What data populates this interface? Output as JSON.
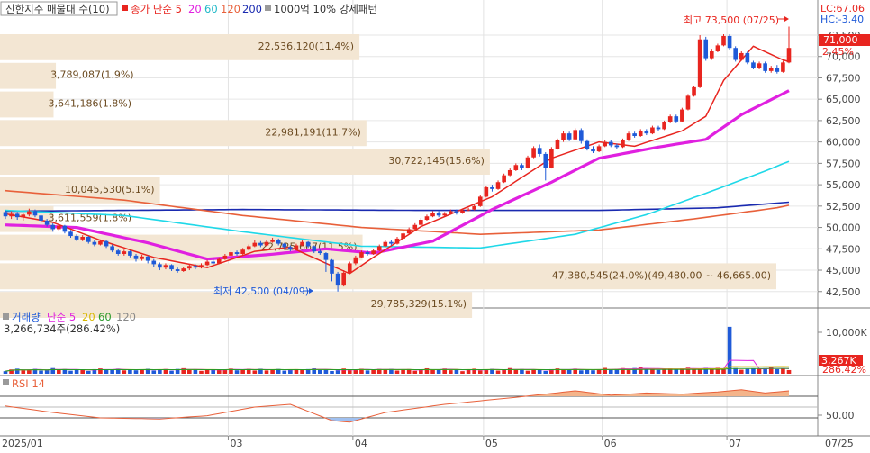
{
  "top_legend": {
    "volume_profile": "신한지주 매물대 수(10)",
    "close_ma": "종가 단순 5",
    "ma20": "20",
    "ma60": "60",
    "ma120": "120",
    "ma200": "200",
    "pattern": "1000억 10% 강세패턴"
  },
  "right_info": {
    "lc": "LC:67.06",
    "hc": "HC:-3.40",
    "price_badge": "71,000",
    "change_pct": "2.45%",
    "volume_badge": "3,267K",
    "volume_pct": "286.42%"
  },
  "annotations": {
    "high": "최고 73,500 (07/25)",
    "low": "최저 42,500 (04/09)"
  },
  "volume_panel": {
    "legend_title": "거래량",
    "legend_ma": "단순 5",
    "legend_20": "20",
    "legend_60": "60",
    "legend_120": "120",
    "current": "3,266,734주(286.42%)",
    "axis_label": "10,000K"
  },
  "rsi_panel": {
    "legend": "RSI 14",
    "axis_label": "50.00"
  },
  "xaxis": {
    "start": "2025/01",
    "months": [
      "03",
      "04",
      "05",
      "06",
      "07"
    ],
    "end": "07/25"
  },
  "colors": {
    "up": "#e8251f",
    "down": "#1f5ad8",
    "ma5": "#e8251f",
    "ma20": "#e020e0",
    "ma60": "#1fd8e8",
    "ma120": "#e8603a",
    "ma200": "#1a2ab0",
    "profile": "#f3e6d3"
  },
  "chart_data": [
    {
      "type": "candlestick",
      "title": "신한지주",
      "ylim": [
        41000,
        74500
      ],
      "yticks": [
        "72,500",
        "70,000",
        "67,500",
        "65,000",
        "62,500",
        "60,000",
        "57,500",
        "55,000",
        "52,500",
        "50,000",
        "47,500",
        "45,000",
        "42,500"
      ],
      "volume_profile": [
        {
          "label": "22,536,120(11.4%)",
          "length": 0.463
        },
        {
          "label": "3,789,087(1.9%)",
          "length": 0.072
        },
        {
          "label": "3,641,186(1.8%)",
          "length": 0.069
        },
        {
          "label": "22,981,191(11.7%)",
          "length": 0.472
        },
        {
          "label": "30,722,145(15.6%)",
          "length": 0.631
        },
        {
          "label": "10,045,530(5.1%)",
          "length": 0.206
        },
        {
          "label": "3,611,559(1.8%)",
          "length": 0.069
        },
        {
          "label": "22,725,667(11.5%)",
          "length": 0.467
        },
        {
          "label": "47,380,545(24.0%)(49,480.00 ~ 46,665.00)",
          "length": 1.0
        },
        {
          "label": "29,785,329(15.1%)",
          "length": 0.608
        }
      ],
      "candles": [
        [
          51800,
          51300,
          52000,
          51000
        ],
        [
          51300,
          51600,
          51900,
          51000
        ],
        [
          51600,
          51200,
          51800,
          50900
        ],
        [
          51200,
          51500,
          51700,
          50800
        ],
        [
          51500,
          51900,
          52200,
          51300
        ],
        [
          51900,
          51400,
          52100,
          51200
        ],
        [
          51400,
          50800,
          51500,
          50500
        ],
        [
          50800,
          50300,
          51000,
          50100
        ],
        [
          50300,
          49800,
          50500,
          49500
        ],
        [
          49800,
          50200,
          50400,
          49600
        ],
        [
          50200,
          49500,
          50300,
          49300
        ],
        [
          49500,
          49000,
          49700,
          48800
        ],
        [
          49000,
          48600,
          49200,
          48400
        ],
        [
          48600,
          48900,
          49100,
          48400
        ],
        [
          48900,
          48300,
          49000,
          48100
        ],
        [
          48300,
          48000,
          48500,
          47800
        ],
        [
          48000,
          48400,
          48600,
          47900
        ],
        [
          48400,
          47800,
          48500,
          47600
        ],
        [
          47800,
          47300,
          48000,
          47100
        ],
        [
          47300,
          46900,
          47500,
          46700
        ],
        [
          46900,
          47200,
          47400,
          46700
        ],
        [
          47200,
          46700,
          47300,
          46500
        ],
        [
          46700,
          46300,
          46900,
          46000
        ],
        [
          46300,
          46600,
          46800,
          46100
        ],
        [
          46600,
          46100,
          46700,
          45800
        ],
        [
          46100,
          45700,
          46300,
          45400
        ],
        [
          45700,
          45300,
          45900,
          45000
        ],
        [
          45300,
          45600,
          45800,
          45100
        ],
        [
          45600,
          45100,
          45700,
          44900
        ],
        [
          45100,
          44900,
          45300,
          44700
        ],
        [
          44900,
          45200,
          45400,
          44800
        ],
        [
          45200,
          45500,
          45700,
          45000
        ],
        [
          45500,
          45300,
          45700,
          45100
        ],
        [
          45300,
          45600,
          45800,
          45200
        ],
        [
          45600,
          46000,
          46200,
          45500
        ],
        [
          46000,
          45800,
          46300,
          45600
        ],
        [
          45800,
          46300,
          46500,
          45700
        ],
        [
          46300,
          46700,
          46900,
          46200
        ],
        [
          46700,
          47100,
          47300,
          46600
        ],
        [
          47100,
          46900,
          47300,
          46700
        ],
        [
          46900,
          47400,
          47600,
          46800
        ],
        [
          47400,
          47800,
          48000,
          47300
        ],
        [
          47800,
          48200,
          48500,
          47700
        ],
        [
          48200,
          47900,
          48400,
          47700
        ],
        [
          47900,
          48300,
          48500,
          47800
        ],
        [
          48300,
          48500,
          48800,
          48200
        ],
        [
          48500,
          48100,
          48700,
          47900
        ],
        [
          48100,
          47700,
          48200,
          47500
        ],
        [
          47700,
          47400,
          47900,
          47200
        ],
        [
          47400,
          47900,
          48100,
          47300
        ],
        [
          47900,
          48300,
          48500,
          47800
        ],
        [
          48300,
          47800,
          48400,
          47600
        ],
        [
          47800,
          47200,
          47900,
          47000
        ],
        [
          47200,
          47000,
          47400,
          46800
        ],
        [
          47000,
          46200,
          47100,
          44800
        ],
        [
          46200,
          44600,
          46300,
          43700
        ],
        [
          44600,
          43200,
          44800,
          42500
        ],
        [
          43200,
          44700,
          45000,
          43100
        ],
        [
          44700,
          45800,
          46000,
          44600
        ],
        [
          45800,
          46500,
          46700,
          45600
        ],
        [
          46500,
          47100,
          47300,
          46400
        ],
        [
          47100,
          46900,
          47300,
          46700
        ],
        [
          46900,
          47300,
          47500,
          46800
        ],
        [
          47300,
          47800,
          48000,
          47200
        ],
        [
          47800,
          48300,
          48500,
          47700
        ],
        [
          48300,
          48100,
          48500,
          47900
        ],
        [
          48100,
          48700,
          48900,
          48000
        ],
        [
          48700,
          49300,
          49500,
          48600
        ],
        [
          49300,
          49800,
          50000,
          49200
        ],
        [
          49800,
          50300,
          50500,
          49700
        ],
        [
          50300,
          50900,
          51100,
          50200
        ],
        [
          50900,
          51300,
          51500,
          50800
        ],
        [
          51300,
          51700,
          51900,
          51200
        ],
        [
          51700,
          51400,
          51900,
          51200
        ],
        [
          51400,
          51600,
          51800,
          51300
        ],
        [
          51600,
          51900,
          52100,
          51500
        ],
        [
          51900,
          51700,
          52100,
          51500
        ],
        [
          51700,
          52000,
          52200,
          51600
        ],
        [
          52000,
          52100,
          52300,
          51900
        ],
        [
          52100,
          52500,
          52700,
          52000
        ],
        [
          52500,
          53600,
          53800,
          52400
        ],
        [
          53600,
          54700,
          54900,
          53500
        ],
        [
          54700,
          54500,
          55000,
          54200
        ],
        [
          54500,
          55300,
          55500,
          54400
        ],
        [
          55300,
          56100,
          56300,
          55200
        ],
        [
          56100,
          56700,
          56900,
          56000
        ],
        [
          56700,
          57300,
          57500,
          56600
        ],
        [
          57300,
          57000,
          57500,
          56700
        ],
        [
          57000,
          58200,
          58400,
          56900
        ],
        [
          58200,
          59300,
          59500,
          58100
        ],
        [
          59300,
          58600,
          59700,
          58300
        ],
        [
          58600,
          57000,
          58800,
          55500
        ],
        [
          57000,
          59200,
          59400,
          56900
        ],
        [
          59200,
          60200,
          60400,
          59100
        ],
        [
          60200,
          61000,
          61300,
          60000
        ],
        [
          61000,
          60300,
          61200,
          60100
        ],
        [
          60300,
          61400,
          61600,
          60200
        ],
        [
          61400,
          60100,
          61600,
          59800
        ],
        [
          60100,
          59200,
          60300,
          59000
        ],
        [
          59200,
          58900,
          59500,
          58700
        ],
        [
          58900,
          59500,
          59700,
          58800
        ],
        [
          59500,
          60000,
          60200,
          59400
        ],
        [
          60000,
          59600,
          60200,
          59400
        ],
        [
          59600,
          59400,
          59800,
          59200
        ],
        [
          59400,
          60200,
          60400,
          59300
        ],
        [
          60200,
          61000,
          61200,
          60100
        ],
        [
          61000,
          60700,
          61200,
          60500
        ],
        [
          60700,
          61300,
          61500,
          60600
        ],
        [
          61300,
          61000,
          61500,
          60800
        ],
        [
          61000,
          61700,
          61900,
          60900
        ],
        [
          61700,
          61500,
          61900,
          61300
        ],
        [
          61500,
          62300,
          62500,
          61400
        ],
        [
          62300,
          63000,
          63200,
          62200
        ],
        [
          63000,
          62400,
          63200,
          62200
        ],
        [
          62400,
          63800,
          64000,
          62300
        ],
        [
          63800,
          65400,
          65600,
          63700
        ],
        [
          65400,
          66400,
          66600,
          65300
        ],
        [
          66400,
          72000,
          72500,
          66300
        ],
        [
          72000,
          69800,
          72300,
          69500
        ],
        [
          69800,
          70600,
          70900,
          69600
        ],
        [
          70600,
          71300,
          71500,
          70500
        ],
        [
          71300,
          72400,
          72600,
          71200
        ],
        [
          72400,
          71000,
          72600,
          70800
        ],
        [
          71000,
          69600,
          71200,
          69400
        ],
        [
          69600,
          70400,
          70600,
          69500
        ],
        [
          70400,
          69300,
          70600,
          69100
        ],
        [
          69300,
          68700,
          69500,
          68500
        ],
        [
          68700,
          69200,
          69400,
          68500
        ],
        [
          69200,
          68300,
          69400,
          68100
        ],
        [
          68300,
          68700,
          68900,
          68100
        ],
        [
          68700,
          68200,
          69000,
          68000
        ],
        [
          68200,
          69300,
          69500,
          68100
        ],
        [
          69300,
          71000,
          73500,
          69200
        ]
      ],
      "ma5_anchors": [
        [
          0,
          51600
        ],
        [
          8,
          50600
        ],
        [
          16,
          48500
        ],
        [
          25,
          46500
        ],
        [
          34,
          45300
        ],
        [
          42,
          47200
        ],
        [
          48,
          47700
        ],
        [
          55,
          45500
        ],
        [
          58,
          44600
        ],
        [
          62,
          46500
        ],
        [
          70,
          50100
        ],
        [
          82,
          53600
        ],
        [
          92,
          58100
        ],
        [
          100,
          60000
        ],
        [
          106,
          59500
        ],
        [
          114,
          61300
        ],
        [
          118,
          63000
        ],
        [
          121,
          67200
        ],
        [
          126,
          71200
        ],
        [
          131,
          69600
        ],
        [
          136,
          68600
        ],
        [
          140,
          69900
        ]
      ],
      "ma20_anchors": [
        [
          0,
          50300
        ],
        [
          12,
          50000
        ],
        [
          24,
          48200
        ],
        [
          34,
          46300
        ],
        [
          44,
          46800
        ],
        [
          54,
          47500
        ],
        [
          62,
          47000
        ],
        [
          72,
          48400
        ],
        [
          82,
          52100
        ],
        [
          92,
          55300
        ],
        [
          100,
          58100
        ],
        [
          110,
          59400
        ],
        [
          118,
          60300
        ],
        [
          124,
          63200
        ],
        [
          132,
          66000
        ],
        [
          140,
          67600
        ]
      ],
      "ma60_anchors": [
        [
          0,
          52000
        ],
        [
          20,
          51400
        ],
        [
          40,
          49500
        ],
        [
          60,
          47800
        ],
        [
          80,
          47600
        ],
        [
          96,
          49200
        ],
        [
          108,
          51500
        ],
        [
          118,
          54000
        ],
        [
          128,
          56600
        ],
        [
          140,
          60000
        ]
      ],
      "ma120_anchors": [
        [
          0,
          54300
        ],
        [
          20,
          53200
        ],
        [
          40,
          51400
        ],
        [
          60,
          50000
        ],
        [
          80,
          49200
        ],
        [
          100,
          49700
        ],
        [
          116,
          51000
        ],
        [
          130,
          52300
        ],
        [
          140,
          53800
        ]
      ],
      "ma200_anchors": [
        [
          0,
          51900
        ],
        [
          40,
          52100
        ],
        [
          70,
          52000
        ],
        [
          100,
          52000
        ],
        [
          120,
          52300
        ],
        [
          140,
          53400
        ]
      ]
    },
    {
      "type": "bar",
      "title": "거래량",
      "ylim": [
        0,
        14000
      ],
      "yticks": [
        "10,000K"
      ],
      "notable": [
        {
          "index": 122,
          "value": 12800
        },
        {
          "index": 140,
          "value": 3267
        }
      ]
    },
    {
      "type": "line",
      "title": "RSI 14",
      "ylim": [
        0,
        100
      ],
      "yticks": [
        "50.00"
      ],
      "rsi_anchors": [
        [
          0,
          52
        ],
        [
          8,
          40
        ],
        [
          16,
          30
        ],
        [
          26,
          28
        ],
        [
          34,
          34
        ],
        [
          42,
          50
        ],
        [
          48,
          55
        ],
        [
          55,
          25
        ],
        [
          58,
          22
        ],
        [
          64,
          40
        ],
        [
          74,
          55
        ],
        [
          86,
          68
        ],
        [
          96,
          80
        ],
        [
          102,
          72
        ],
        [
          108,
          76
        ],
        [
          114,
          74
        ],
        [
          120,
          78
        ],
        [
          124,
          82
        ],
        [
          128,
          76
        ],
        [
          132,
          80
        ],
        [
          136,
          62
        ],
        [
          140,
          68
        ]
      ]
    }
  ]
}
